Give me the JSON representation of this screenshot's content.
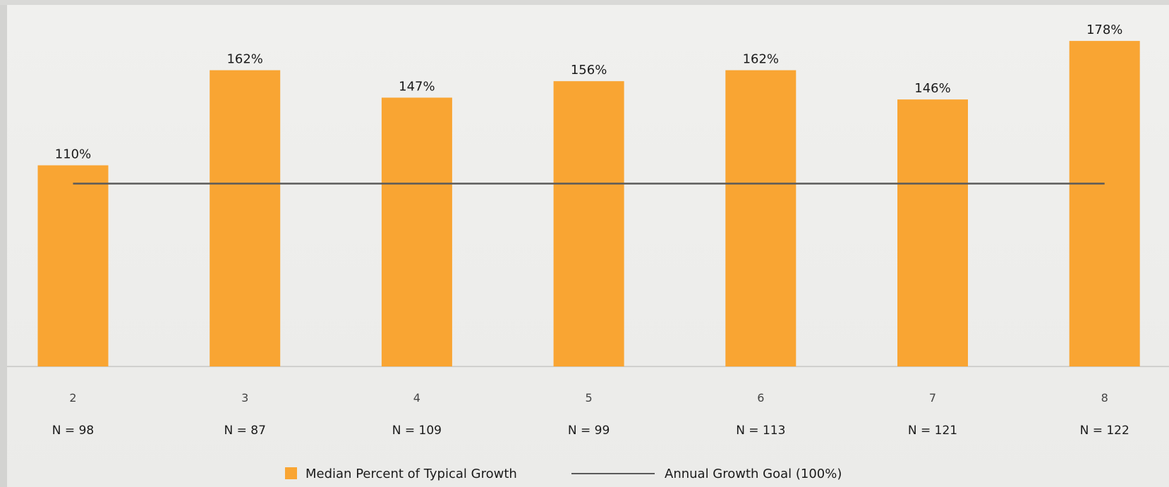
{
  "chart_data": {
    "type": "bar",
    "categories": [
      "2",
      "3",
      "4",
      "5",
      "6",
      "7",
      "8"
    ],
    "sample_sizes": [
      "N = 98",
      "N = 87",
      "N = 109",
      "N = 99",
      "N = 113",
      "N = 121",
      "N = 122"
    ],
    "series": [
      {
        "name": "Median Percent of Typical Growth",
        "values": [
          110,
          162,
          147,
          156,
          162,
          146,
          178
        ],
        "value_labels": [
          "110%",
          "162%",
          "147%",
          "156%",
          "162%",
          "146%",
          "178%"
        ],
        "color": "#F9A533"
      }
    ],
    "reference_line": {
      "name": "Annual Growth Goal (100%)",
      "value": 100,
      "color": "#5a5a5a"
    },
    "ylim": [
      0,
      180
    ],
    "grid": false,
    "legend_position": "bottom"
  }
}
